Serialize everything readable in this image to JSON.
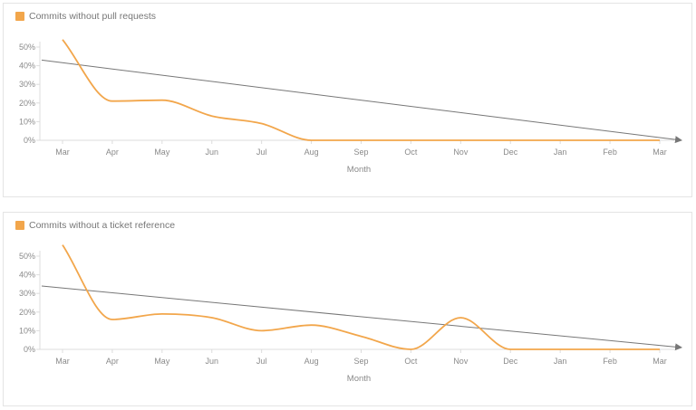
{
  "colors": {
    "series": "#f2a64b",
    "trend": "#777777",
    "axis": "#dcdcdc"
  },
  "chart_data": [
    {
      "type": "line",
      "legend": "Commits without pull requests",
      "xlabel": "Month",
      "ylabel": "",
      "ylim": [
        0,
        50
      ],
      "yticks": [
        "0%",
        "10%",
        "20%",
        "30%",
        "40%",
        "50%"
      ],
      "categories": [
        "Mar",
        "Apr",
        "May",
        "Jun",
        "Jul",
        "Aug",
        "Sep",
        "Oct",
        "Nov",
        "Dec",
        "Jan",
        "Feb",
        "Mar"
      ],
      "series": [
        {
          "name": "Commits without pull requests",
          "values": [
            54,
            21,
            21.5,
            13,
            9,
            0,
            0,
            0,
            0,
            0,
            0,
            0,
            0
          ]
        }
      ],
      "trend": {
        "start": 43,
        "end": 0
      }
    },
    {
      "type": "line",
      "legend": "Commits without a ticket reference",
      "xlabel": "Month",
      "ylabel": "",
      "ylim": [
        0,
        50
      ],
      "yticks": [
        "0%",
        "10%",
        "20%",
        "30%",
        "40%",
        "50%"
      ],
      "categories": [
        "Mar",
        "Apr",
        "May",
        "Jun",
        "Jul",
        "Aug",
        "Sep",
        "Oct",
        "Nov",
        "Dec",
        "Jan",
        "Feb",
        "Mar"
      ],
      "series": [
        {
          "name": "Commits without a ticket reference",
          "values": [
            56,
            16,
            19,
            17,
            10,
            13,
            7,
            0,
            17,
            0,
            0,
            0,
            0
          ]
        }
      ],
      "trend": {
        "start": 34,
        "end": 1
      }
    }
  ]
}
